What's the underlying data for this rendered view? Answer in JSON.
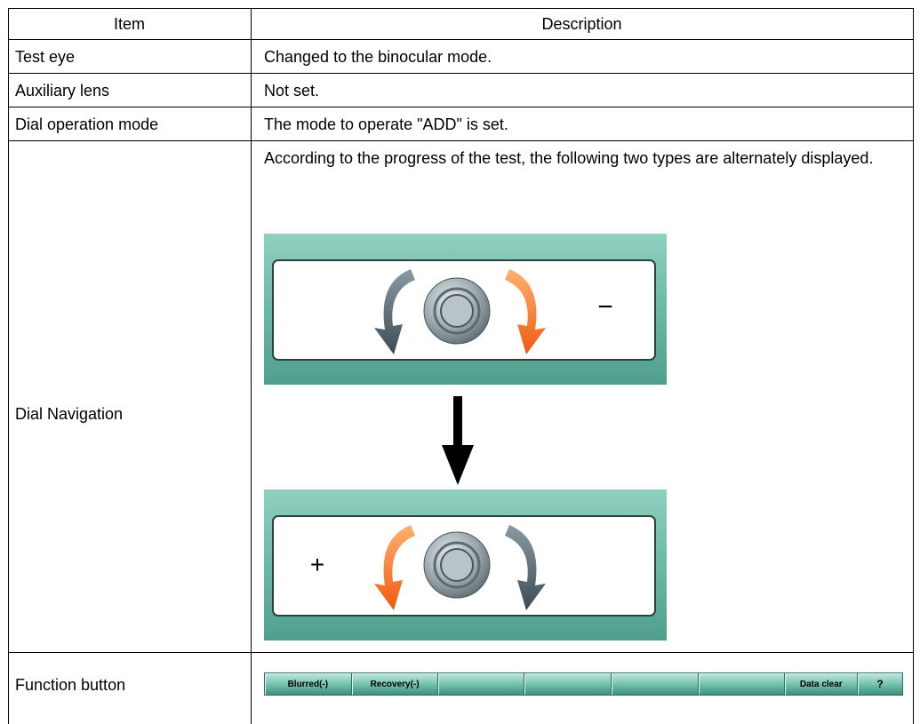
{
  "table": {
    "header": [
      "Item",
      "Description"
    ],
    "rows": [
      {
        "item": "Test eye",
        "description": "Changed to the binocular mode."
      },
      {
        "item": "Auxiliary lens",
        "description": "Not set."
      },
      {
        "item": "Dial operation mode",
        "description": "The mode to operate \"ADD\" is set."
      },
      {
        "item": "Dial Navigation",
        "description": "According to the progress of the test, the following two types are alternately displayed."
      },
      {
        "item": "Function button"
      }
    ]
  },
  "dial_navigation": {
    "first_symbol": "−",
    "second_symbol": "+"
  },
  "function_buttons": [
    "Blurred(-)",
    "Recovery(-)",
    "Data clear",
    "?"
  ]
}
